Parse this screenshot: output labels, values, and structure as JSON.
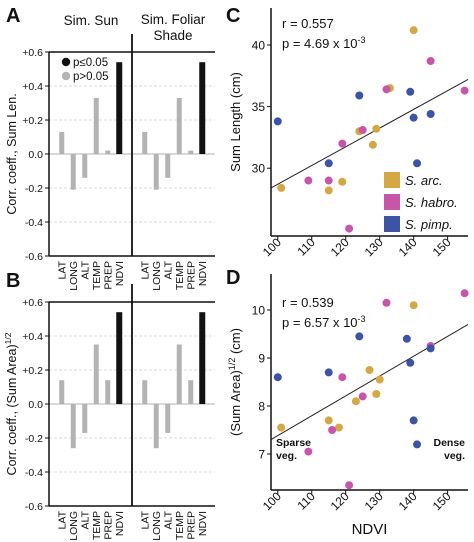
{
  "panels": {
    "A": "A",
    "B": "B",
    "C": "C",
    "D": "D"
  },
  "bar_headers": {
    "sun": "Sim. Sun",
    "shade_line1": "Sim. Foliar",
    "shade_line2": "Shade"
  },
  "legend_p": {
    "sig": "p≤0.05",
    "nonsig": "p>0.05",
    "sig_color": "#111111",
    "nonsig_color": "#b3b3b3"
  },
  "ytick_labels": [
    "+0.6",
    "+0.4",
    "+0.2",
    "0.0",
    "-0.2",
    "-0.4",
    "-0.6"
  ],
  "scatter_legend": [
    {
      "label": "S. arc.",
      "color": "#d4a845"
    },
    {
      "label": "S. habro.",
      "color": "#c756a8"
    },
    {
      "label": "S. pimp.",
      "color": "#3d53a5"
    }
  ],
  "annotations": {
    "C_r": "r = 0.557",
    "C_p_base": "p = 4.69 x 10",
    "C_p_exp": "-3",
    "D_r": "r = 0.539",
    "D_p_base": "p = 6.57 x 10",
    "D_p_exp": "-3",
    "sparse1": "Sparse",
    "sparse2": "veg.",
    "dense1": "Dense",
    "dense2": "veg."
  },
  "chart_data": [
    {
      "panel": "A",
      "type": "bar",
      "ylabel": "Corr. coeff., Sum Len.",
      "ylim": [
        -0.6,
        0.6
      ],
      "categories": [
        "LAT",
        "LONG",
        "ALT",
        "TEMP",
        "PREP",
        "NDVI"
      ],
      "groups": [
        {
          "name": "Sim. Sun",
          "values": [
            0.13,
            -0.21,
            -0.14,
            0.33,
            0.02,
            0.54
          ],
          "significant": [
            false,
            false,
            false,
            false,
            false,
            true
          ]
        },
        {
          "name": "Sim. Foliar Shade",
          "values": [
            0.13,
            -0.21,
            -0.14,
            0.33,
            0.02,
            0.54
          ],
          "significant": [
            false,
            false,
            false,
            false,
            false,
            true
          ]
        }
      ],
      "grid": true
    },
    {
      "panel": "B",
      "type": "bar",
      "ylabel": "Corr. coeff., (Sum Area)",
      "ylabel_sup": "1/2",
      "ylim": [
        -0.6,
        0.6
      ],
      "categories": [
        "LAT",
        "LONG",
        "ALT",
        "TEMP",
        "PREP",
        "NDVI"
      ],
      "groups": [
        {
          "name": "Sim. Sun",
          "values": [
            0.14,
            -0.26,
            -0.17,
            0.35,
            0.14,
            0.54
          ],
          "significant": [
            false,
            false,
            false,
            false,
            false,
            true
          ]
        },
        {
          "name": "Sim. Foliar Shade",
          "values": [
            0.14,
            -0.26,
            -0.17,
            0.35,
            0.14,
            0.54
          ],
          "significant": [
            false,
            false,
            false,
            false,
            false,
            true
          ]
        }
      ],
      "grid": true
    },
    {
      "panel": "C",
      "type": "scatter",
      "ylabel": "Sum Length (cm)",
      "xlim": [
        98,
        156
      ],
      "ylim": [
        24.5,
        43
      ],
      "xticks": [
        100,
        110,
        120,
        130,
        140,
        150
      ],
      "yticks": [
        30,
        35,
        40
      ],
      "fit_line": {
        "x": [
          98,
          156
        ],
        "y": [
          28.4,
          37.2
        ]
      },
      "series": [
        {
          "name": "S. arc.",
          "x": [
            101,
            115,
            119,
            124,
            128,
            129,
            133,
            140
          ],
          "y": [
            28.4,
            28.2,
            28.9,
            33.0,
            31.9,
            33.2,
            36.5,
            41.2
          ]
        },
        {
          "name": "S. habro.",
          "x": [
            109,
            115,
            119,
            121,
            125,
            132,
            145,
            155
          ],
          "y": [
            29.0,
            29.0,
            32.0,
            25.1,
            33.1,
            36.4,
            38.7,
            36.3
          ]
        },
        {
          "name": "S. pimp.",
          "x": [
            100,
            115,
            124,
            139,
            140,
            141,
            145
          ],
          "y": [
            33.8,
            30.4,
            35.9,
            36.2,
            34.1,
            30.4,
            34.4
          ]
        }
      ]
    },
    {
      "panel": "D",
      "type": "scatter",
      "xlabel": "NDVI",
      "ylabel": "(Sum Area)",
      "ylabel_sup": "1/2",
      "ylabel_unit": "(cm)",
      "xlim": [
        98,
        156
      ],
      "ylim": [
        6.25,
        10.75
      ],
      "xticks": [
        100,
        110,
        120,
        130,
        140,
        150
      ],
      "yticks": [
        7,
        8,
        9,
        10
      ],
      "fit_line": {
        "x": [
          98,
          156
        ],
        "y": [
          7.3,
          9.7
        ]
      },
      "series": [
        {
          "name": "S. arc.",
          "x": [
            101,
            115,
            118,
            123,
            127,
            129,
            130,
            140
          ],
          "y": [
            7.55,
            7.7,
            7.55,
            8.1,
            8.75,
            8.25,
            8.55,
            10.1
          ]
        },
        {
          "name": "S. habro.",
          "x": [
            109,
            116,
            119,
            121,
            125,
            132,
            145,
            155
          ],
          "y": [
            7.05,
            7.5,
            8.6,
            6.35,
            8.2,
            10.15,
            9.25,
            10.35
          ]
        },
        {
          "name": "S. pimp.",
          "x": [
            100,
            115,
            124,
            138,
            139,
            140,
            141,
            145
          ],
          "y": [
            8.6,
            8.7,
            9.45,
            9.4,
            8.9,
            7.7,
            7.2,
            9.2
          ]
        }
      ]
    }
  ]
}
